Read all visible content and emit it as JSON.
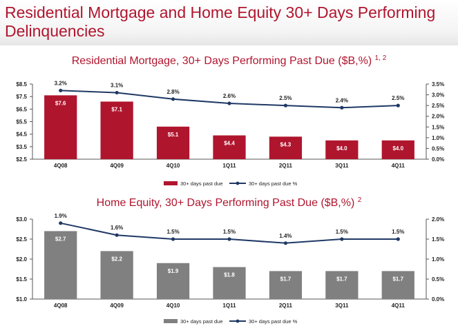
{
  "page": {
    "title": "Residential Mortgage and Home Equity 30+ Days Performing Delinquencies"
  },
  "chart_data": [
    {
      "type": "bar",
      "title": "Residential Mortgage, 30+ Days Performing Past Due ($B,%)",
      "title_footnote": "1, 2",
      "categories": [
        "4Q08",
        "4Q09",
        "4Q10",
        "1Q11",
        "2Q11",
        "3Q11",
        "4Q11"
      ],
      "series": [
        {
          "name": "30+ days past due",
          "kind": "bar",
          "axis": "left",
          "color": "#b0152e",
          "values": [
            7.6,
            7.1,
            5.1,
            4.4,
            4.3,
            4.0,
            4.0
          ],
          "labels": [
            "$7.6",
            "$7.1",
            "$5.1",
            "$4.4",
            "$4.3",
            "$4.0",
            "$4.0"
          ]
        },
        {
          "name": "30+ days past due %",
          "kind": "line",
          "axis": "right",
          "color": "#1f3864",
          "values": [
            3.2,
            3.1,
            2.8,
            2.6,
            2.5,
            2.4,
            2.5
          ],
          "labels": [
            "3.2%",
            "3.1%",
            "2.8%",
            "2.6%",
            "2.5%",
            "2.4%",
            "2.5%"
          ]
        }
      ],
      "left_axis": {
        "ylim": [
          2.5,
          8.5
        ],
        "ticks": [
          2.5,
          3.5,
          4.5,
          5.5,
          6.5,
          7.5,
          8.5
        ],
        "tick_labels": [
          "$2.5",
          "$3.5",
          "$4.5",
          "$5.5",
          "$6.5",
          "$7.5",
          "$8.5"
        ]
      },
      "right_axis": {
        "ylim": [
          0,
          3.5
        ],
        "ticks": [
          0,
          0.5,
          1,
          1.5,
          2,
          2.5,
          3,
          3.5
        ],
        "tick_labels": [
          "0.0%",
          "0.5%",
          "1.0%",
          "1.5%",
          "2.0%",
          "2.5%",
          "3.0%",
          "3.5%"
        ]
      },
      "legend": [
        "30+ days past due",
        "30+ days past due %"
      ],
      "legend_position": "bottom",
      "grid": false
    },
    {
      "type": "bar",
      "title": "Home Equity, 30+ Days Performing Past Due ($B,%)",
      "title_footnote": "2",
      "categories": [
        "4Q08",
        "4Q09",
        "4Q10",
        "1Q11",
        "2Q11",
        "3Q11",
        "4Q11"
      ],
      "series": [
        {
          "name": "30+ days past due",
          "kind": "bar",
          "axis": "left",
          "color": "#808080",
          "values": [
            2.7,
            2.2,
            1.9,
            1.8,
            1.7,
            1.7,
            1.7
          ],
          "labels": [
            "$2.7",
            "$2.2",
            "$1.9",
            "$1.8",
            "$1.7",
            "$1.7",
            "$1.7"
          ]
        },
        {
          "name": "30+ days past due %",
          "kind": "line",
          "axis": "right",
          "color": "#1f3864",
          "values": [
            1.9,
            1.6,
            1.5,
            1.5,
            1.4,
            1.5,
            1.5
          ],
          "labels": [
            "1.9%",
            "1.6%",
            "1.5%",
            "1.5%",
            "1.4%",
            "1.5%",
            "1.5%"
          ]
        }
      ],
      "left_axis": {
        "ylim": [
          1.0,
          3.0
        ],
        "ticks": [
          1.0,
          1.5,
          2.0,
          2.5,
          3.0
        ],
        "tick_labels": [
          "$1.0",
          "$1.5",
          "$2.0",
          "$2.5",
          "$3.0"
        ]
      },
      "right_axis": {
        "ylim": [
          0,
          2.0
        ],
        "ticks": [
          0,
          0.5,
          1,
          1.5,
          2
        ],
        "tick_labels": [
          "0.0%",
          "0.5%",
          "1.0%",
          "1.5%",
          "2.0%"
        ]
      },
      "legend": [
        "30+ days past due",
        "30+ days past due %"
      ],
      "legend_position": "bottom",
      "grid": false
    }
  ]
}
